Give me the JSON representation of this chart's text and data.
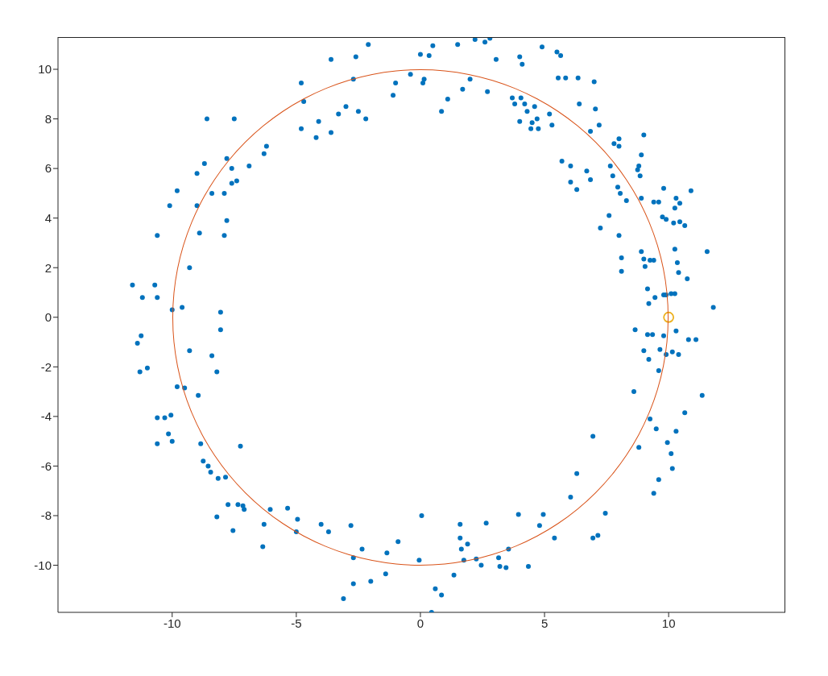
{
  "chart_data": {
    "type": "scatter",
    "xlim": [
      -14.6,
      14.7
    ],
    "ylim": [
      -11.9,
      11.3
    ],
    "xticks": [
      -10,
      -5,
      0,
      5,
      10
    ],
    "yticks": [
      -10,
      -8,
      -6,
      -4,
      -2,
      0,
      2,
      4,
      6,
      8,
      10
    ],
    "grid": false,
    "marker": "circle",
    "x": [
      -11.6,
      -11.2,
      -10.7,
      -10.6,
      -10.6,
      -10.1,
      -9.8,
      -9.0,
      -8.7,
      -8.6,
      -8.4,
      -9.0,
      -8.9,
      -9.3,
      -10.0,
      -9.6,
      -7.9,
      -7.8,
      -7.8,
      -7.5,
      -7.6,
      -7.6,
      -7.4,
      -7.9,
      -6.9,
      -6.3,
      -6.2,
      -4.8,
      -4.7,
      -4.8,
      -4.2,
      -4.1,
      -3.6,
      -3.6,
      -3.3,
      -3.0,
      -2.6,
      -2.7,
      -2.5,
      -2.2,
      -2.1,
      -1.1,
      -1.0,
      -0.4,
      0,
      0.1,
      0.15,
      0.35,
      0.5,
      0.85,
      1.1,
      1.5,
      1.7,
      2.0,
      2.2,
      2.6,
      2.8,
      2.7,
      3.05,
      4.0,
      4.1,
      4.9,
      3.7,
      4.05,
      3.8,
      4.2,
      4.3,
      4.6,
      4.5,
      4.0,
      4.45,
      4.7,
      4.75,
      5.2,
      5.3,
      5.5,
      5.65,
      5.55,
      6.35,
      5.85,
      7.0,
      6.4,
      7.05,
      7.2,
      6.85,
      5.7,
      6.05,
      6.05,
      6.3,
      6.7,
      6.85,
      7.25,
      7.6,
      7.75,
      7.65,
      7.8,
      8.0,
      8.0,
      7.95,
      8.05,
      8.3,
      8.0,
      8.1,
      8.1,
      8.8,
      8.75,
      8.9,
      9.0,
      8.85,
      8.9,
      9.4,
      9.6,
      9.8,
      9.75,
      9.9,
      10.2,
      10.45,
      10.3,
      10.45,
      10.25,
      10.65,
      10.9,
      11.55,
      10.25,
      10.35,
      10.4,
      10.75,
      9.25,
      9.4,
      9.05,
      9.0,
      8.9,
      9.15,
      9.2,
      9.45,
      9.8,
      9.9,
      10.1,
      10.25,
      11.8,
      8.65,
      9.15,
      9.35,
      9.8,
      10.3,
      10.8,
      11.1,
      9.0,
      9.2,
      9.65,
      9.9,
      10.15,
      10.4,
      9.6,
      11.35,
      8.6,
      10.65,
      8.8,
      9.25,
      9.5,
      9.95,
      10.1,
      10.15,
      10.3,
      9.6,
      9.4,
      6.95,
      7.45,
      7.15,
      6.95,
      6.3,
      6.05,
      5.4,
      4.95,
      4.8,
      3.95,
      4.35,
      3.55,
      3.45,
      3.2,
      2.65,
      3.15,
      2.45,
      2.25,
      1.75,
      1.6,
      1.6,
      1.9,
      1.65,
      1.35,
      0.85,
      0.6,
      0.45,
      0.05,
      -0.05,
      -0.9,
      -1.35,
      -1.4,
      -2.0,
      -2.35,
      -2.7,
      -2.7,
      -2.8,
      -3.1,
      -3.7,
      -4.0,
      -5.0,
      -4.95,
      -5.35,
      -6.3,
      -6.35,
      -6.05,
      -7.15,
      -7.1,
      -7.25,
      -7.35,
      -7.55,
      -7.75,
      -7.85,
      -8.15,
      -8.2,
      -8.45,
      -8.55,
      -8.75,
      -8.85,
      -8.95,
      -9.5,
      -9.8,
      -9.3,
      -10.3,
      -10.05,
      -10.15,
      -10.0,
      -10.6,
      -10.6,
      -11.0,
      -11.3,
      -11.25,
      -11.4,
      -8.4,
      -8.2,
      -8.05,
      -8.05
    ],
    "series": [
      {
        "color": "#0072bd",
        "values": [
          1.3,
          0.8,
          1.3,
          0.8,
          3.3,
          4.5,
          5.1,
          5.8,
          6.2,
          8.0,
          5.0,
          4.5,
          3.4,
          2.0,
          0.3,
          0.4,
          3.3,
          3.9,
          6.4,
          8.0,
          6.0,
          5.4,
          5.5,
          5.0,
          6.1,
          6.6,
          6.9,
          7.6,
          8.7,
          9.45,
          7.25,
          7.9,
          10.4,
          7.45,
          8.2,
          8.5,
          10.5,
          9.6,
          8.3,
          8.0,
          11.0,
          8.95,
          9.45,
          9.8,
          10.6,
          9.45,
          9.6,
          10.55,
          10.95,
          8.3,
          8.8,
          11.0,
          9.2,
          9.6,
          11.2,
          11.1,
          11.25,
          9.1,
          10.4,
          10.5,
          10.2,
          10.9,
          8.85,
          8.85,
          8.6,
          8.6,
          8.3,
          8.5,
          7.85,
          7.9,
          7.6,
          8.0,
          7.6,
          8.2,
          7.75,
          10.7,
          10.55,
          9.65,
          9.65,
          9.65,
          9.5,
          8.6,
          8.4,
          7.75,
          7.5,
          6.3,
          6.1,
          5.45,
          5.15,
          5.9,
          5.55,
          3.6,
          4.1,
          5.7,
          6.1,
          7.0,
          6.9,
          7.2,
          5.25,
          5.0,
          4.7,
          3.3,
          2.4,
          1.85,
          6.1,
          5.95,
          6.55,
          7.35,
          5.7,
          4.8,
          4.65,
          4.65,
          5.2,
          4.05,
          3.95,
          3.8,
          3.85,
          4.8,
          4.6,
          4.4,
          3.7,
          5.1,
          2.65,
          2.75,
          2.2,
          1.8,
          1.55,
          2.3,
          2.3,
          2.05,
          2.35,
          2.65,
          1.15,
          0.55,
          0.8,
          0.9,
          0.9,
          0.95,
          0.95,
          0.4,
          -0.5,
          -0.7,
          -0.7,
          -0.75,
          -0.55,
          -0.9,
          -0.9,
          -1.35,
          -1.7,
          -1.3,
          -1.5,
          -1.4,
          -1.5,
          -2.15,
          -3.15,
          -3.0,
          -3.85,
          -5.25,
          -4.1,
          -4.5,
          -5.05,
          -5.5,
          -6.1,
          -4.6,
          -6.55,
          -7.1,
          -4.8,
          -7.9,
          -8.8,
          -8.9,
          -6.3,
          -7.25,
          -8.9,
          -7.95,
          -8.4,
          -7.95,
          -10.05,
          -9.35,
          -10.1,
          -10.05,
          -8.3,
          -9.7,
          -10.0,
          -9.75,
          -9.8,
          -8.35,
          -8.9,
          -9.15,
          -9.35,
          -10.4,
          -11.2,
          -10.95,
          -11.9,
          -8.0,
          -9.8,
          -9.05,
          -9.5,
          -10.35,
          -10.65,
          -9.35,
          -10.75,
          -9.7,
          -8.4,
          -11.35,
          -8.65,
          -8.35,
          -8.65,
          -8.15,
          -7.7,
          -8.35,
          -9.25,
          -7.75,
          -7.6,
          -7.75,
          -5.2,
          -7.55,
          -8.6,
          -7.55,
          -6.45,
          -6.5,
          -8.05,
          -6.25,
          -6.0,
          -5.8,
          -5.1,
          -3.15,
          -2.85,
          -2.8,
          -1.35,
          -4.05,
          -3.95,
          -4.7,
          -5.0,
          -5.1,
          -4.05,
          -2.05,
          -2.2,
          -0.75,
          -1.05,
          -1.55,
          -2.2,
          -0.5,
          0.2
        ]
      },
      {
        "type": "scatter",
        "color": "#edb120",
        "x": [
          10
        ],
        "values": [
          0
        ]
      }
    ]
  }
}
